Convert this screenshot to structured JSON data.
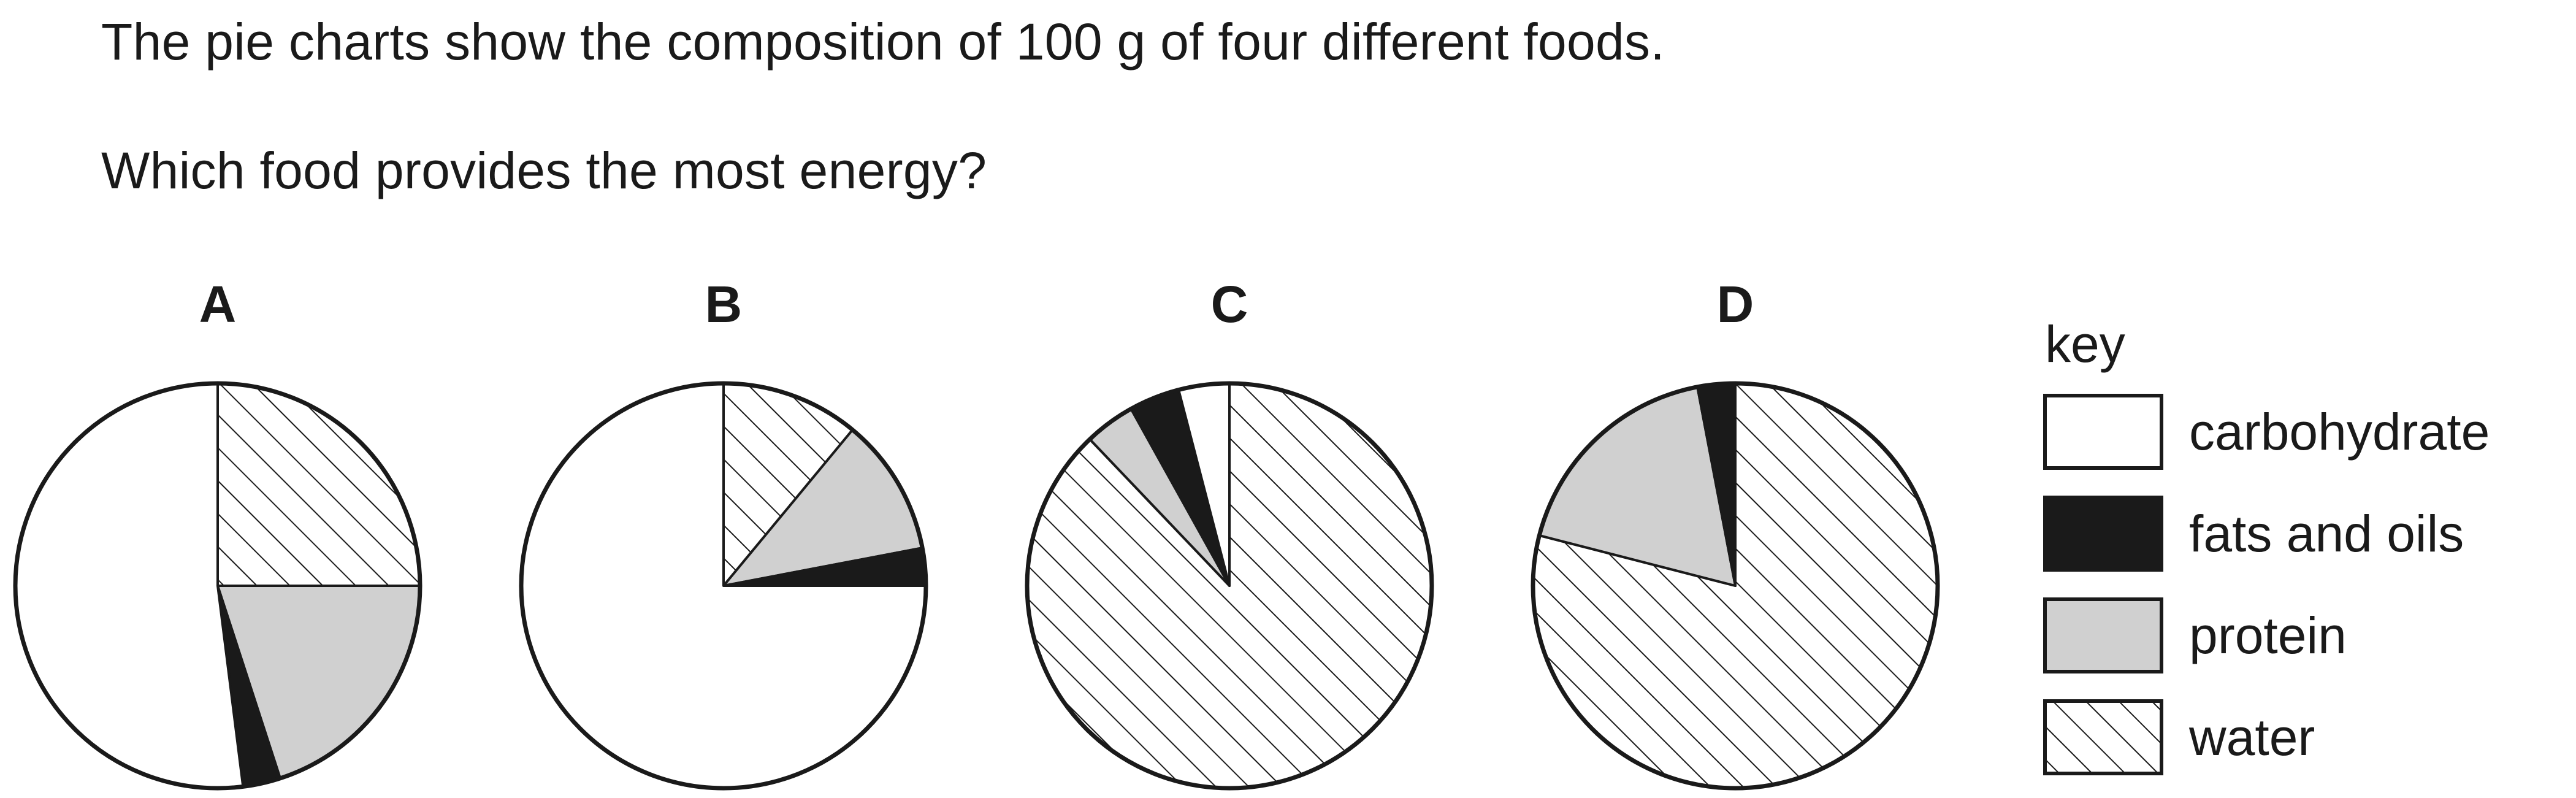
{
  "question": {
    "line1": "The pie charts show the composition of 100 g of four different foods.",
    "line2": "Which food provides the most energy?"
  },
  "chart_data": {
    "type": "pie",
    "legend_title": "key",
    "legend_placement": "right",
    "categories": [
      {
        "name": "carbohydrate",
        "pattern": "white"
      },
      {
        "name": "fats and oils",
        "pattern": "black"
      },
      {
        "name": "protein",
        "pattern": "grey"
      },
      {
        "name": "water",
        "pattern": "hatched"
      }
    ],
    "colors": {
      "carbohydrate": "#ffffff",
      "fats and oils": "#1a1a1a",
      "protein": "#d0d0d0",
      "water_hatch": "#1a1a1a",
      "outline": "#1a1a1a"
    },
    "pies": [
      {
        "label": "A",
        "slices": [
          {
            "category": "water",
            "value": 25
          },
          {
            "category": "protein",
            "value": 20
          },
          {
            "category": "fats and oils",
            "value": 3
          },
          {
            "category": "carbohydrate",
            "value": 52
          }
        ]
      },
      {
        "label": "B",
        "slices": [
          {
            "category": "water",
            "value": 11
          },
          {
            "category": "protein",
            "value": 11
          },
          {
            "category": "fats and oils",
            "value": 3
          },
          {
            "category": "carbohydrate",
            "value": 75
          }
        ]
      },
      {
        "label": "C",
        "slices": [
          {
            "category": "water",
            "value": 87
          },
          {
            "category": "protein",
            "value": 4
          },
          {
            "category": "fats and oils",
            "value": 4
          },
          {
            "category": "carbohydrate",
            "value": 4
          }
        ]
      },
      {
        "label": "D",
        "slices": [
          {
            "category": "water",
            "value": 79
          },
          {
            "category": "protein",
            "value": 18
          },
          {
            "category": "fats and oils",
            "value": 3
          }
        ]
      }
    ]
  }
}
